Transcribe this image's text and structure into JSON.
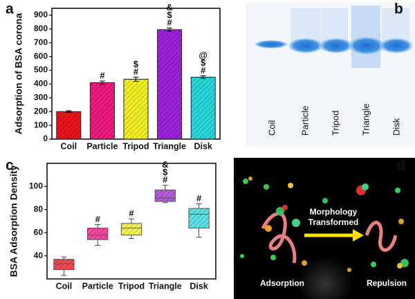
{
  "chart_data": [
    {
      "type": "bar",
      "panel_label": "a",
      "ylabel": "Adsorption of BSA corona",
      "categories": [
        "Coil",
        "Particle",
        "Tripod",
        "Triangle",
        "Disk"
      ],
      "values": [
        200,
        410,
        435,
        795,
        450
      ],
      "errors": [
        6,
        12,
        15,
        12,
        10
      ],
      "colors": [
        "#e8141c",
        "#ec1a7c",
        "#f2ee22",
        "#9a22d8",
        "#26d6d8"
      ],
      "annotations": [
        [],
        [
          "#"
        ],
        [
          "$",
          "#"
        ],
        [
          "&",
          "$",
          "#"
        ],
        [
          "@",
          "$",
          "#"
        ]
      ],
      "ylim": [
        0,
        950
      ],
      "yticks": [
        0,
        100,
        200,
        300,
        400,
        500,
        600,
        700,
        800,
        900
      ]
    },
    {
      "type": "box",
      "panel_label": "c",
      "ylabel": "BSA Adsorption Density",
      "categories": [
        "Coil",
        "Particle",
        "Tripod",
        "Triangle",
        "Disk"
      ],
      "boxes": [
        {
          "min": 23,
          "q1": 28,
          "median": 33,
          "q3": 37,
          "max": 39
        },
        {
          "min": 49,
          "q1": 54,
          "median": 58,
          "q3": 64,
          "max": 67
        },
        {
          "min": 55,
          "q1": 58,
          "median": 64,
          "q3": 68,
          "max": 72
        },
        {
          "min": 86,
          "q1": 87,
          "median": 90,
          "q3": 97,
          "max": 101
        },
        {
          "min": 56,
          "q1": 64,
          "median": 76,
          "q3": 81,
          "max": 85
        }
      ],
      "colors": [
        "#f04a50",
        "#f04aa0",
        "#f6f25a",
        "#b25ce0",
        "#5ee0e4"
      ],
      "annotations": [
        [],
        [
          "#"
        ],
        [
          "#"
        ],
        [
          "&",
          "$",
          "#"
        ],
        [
          "#"
        ]
      ],
      "ylim": [
        20,
        120
      ],
      "yticks": [
        40,
        60,
        80,
        100
      ]
    }
  ],
  "gel": {
    "panel_label": "b",
    "lanes": [
      "Coil",
      "Particle",
      "Tripod",
      "Triangle",
      "Disk"
    ]
  },
  "illustration": {
    "panel_label": "d",
    "arrow_label": [
      "Morphology",
      "Transformed"
    ],
    "left_label": "Adsorption",
    "right_label": "Repulsion"
  }
}
